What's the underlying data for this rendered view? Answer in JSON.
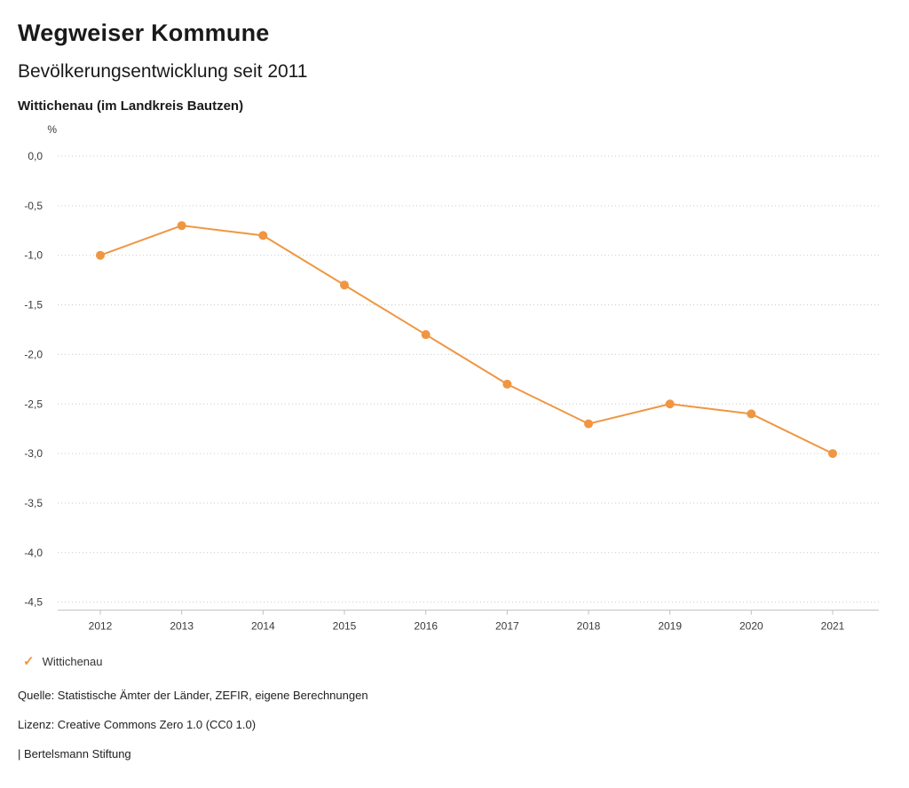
{
  "header": {
    "title": "Wegweiser Kommune",
    "subtitle": "Bevölkerungsentwicklung seit 2011",
    "region": "Wittichenau (im Landkreis Bautzen)"
  },
  "chart_data": {
    "type": "line",
    "title": "Bevölkerungsentwicklung seit 2011",
    "unit_label": "%",
    "x": [
      "2012",
      "2013",
      "2014",
      "2015",
      "2016",
      "2017",
      "2018",
      "2019",
      "2020",
      "2021"
    ],
    "series": [
      {
        "name": "Wittichenau",
        "values": [
          -1.0,
          -0.7,
          -0.8,
          -1.3,
          -1.8,
          -2.3,
          -2.7,
          -2.5,
          -2.6,
          -3.0
        ]
      }
    ],
    "ylim": [
      -4.5,
      0.0
    ],
    "ytick_step": 0.5,
    "ytick_labels": [
      "0,0",
      "-0,5",
      "-1,0",
      "-1,5",
      "-2,0",
      "-2,5",
      "-3,0",
      "-3,5",
      "-4,0",
      "-4,5"
    ],
    "grid": "horizontal-dotted",
    "line_color": "#F09642",
    "legend_position": "bottom-left"
  },
  "legend": {
    "items": [
      {
        "label": "Wittichenau",
        "color": "#F09642",
        "marker": "check"
      }
    ]
  },
  "legend_marker_glyph": "✓",
  "footer": {
    "source": "Quelle: Statistische Ämter der Länder, ZEFIR, eigene Berechnungen",
    "license": "Lizenz: Creative Commons Zero 1.0 (CC0 1.0)",
    "attribution": "| Bertelsmann Stiftung"
  }
}
